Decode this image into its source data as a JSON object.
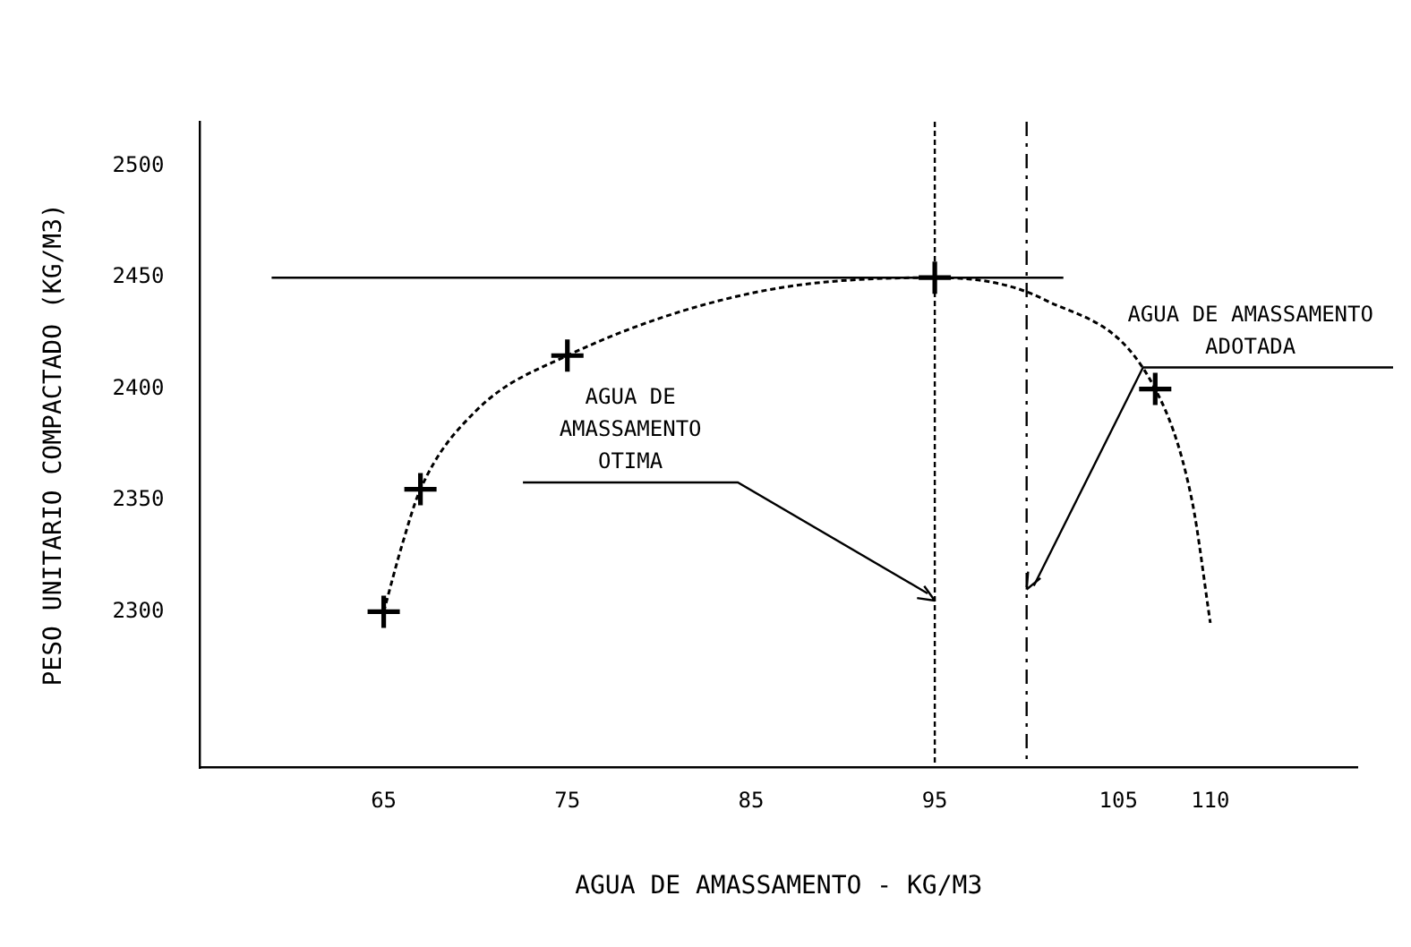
{
  "chart_data": {
    "type": "scatter",
    "xlabel": "AGUA DE AMASSAMENTO - KG/M3",
    "ylabel": "PESO UNITARIO COMPACTADO (KG/M3)",
    "xlim": [
      55,
      118
    ],
    "xticks": [
      65,
      75,
      85,
      95,
      105,
      110
    ],
    "ylim": [
      2230,
      2520
    ],
    "yticks": [
      2300,
      2350,
      2400,
      2450,
      2500
    ],
    "grid": false,
    "legend": false,
    "series": [
      {
        "type": "scatter",
        "color": "#000000",
        "marker": "cross",
        "x": [
          65,
          67,
          75,
          95,
          107
        ],
        "values": [
          2300,
          2355,
          2415,
          2450,
          2400
        ]
      },
      {
        "type": "line",
        "color": "#000000",
        "marker": "none",
        "line_style": "dotted",
        "x": [
          65,
          66,
          67,
          70,
          75,
          85,
          95,
          101,
          107,
          109,
          110
        ],
        "values": [
          2300,
          2330,
          2355,
          2390,
          2415,
          2443,
          2450,
          2440,
          2400,
          2350,
          2295
        ]
      }
    ],
    "ref_lines": [
      {
        "axis": "y",
        "value": 2450,
        "line_style": "solid",
        "color": "#000000"
      },
      {
        "axis": "x",
        "value": 95,
        "line_style": "dotted",
        "color": "#000000"
      },
      {
        "axis": "x",
        "value": 100,
        "line_style": "dashed",
        "color": "#000000"
      }
    ],
    "annotations": [
      {
        "text": "AGUA DE AMASSAMENTO OTIMA",
        "x": 95,
        "y": 2305
      },
      {
        "text": "AGUA DE AMASSAMENTO ADOTADA",
        "x": 100,
        "y": 2310
      }
    ]
  }
}
